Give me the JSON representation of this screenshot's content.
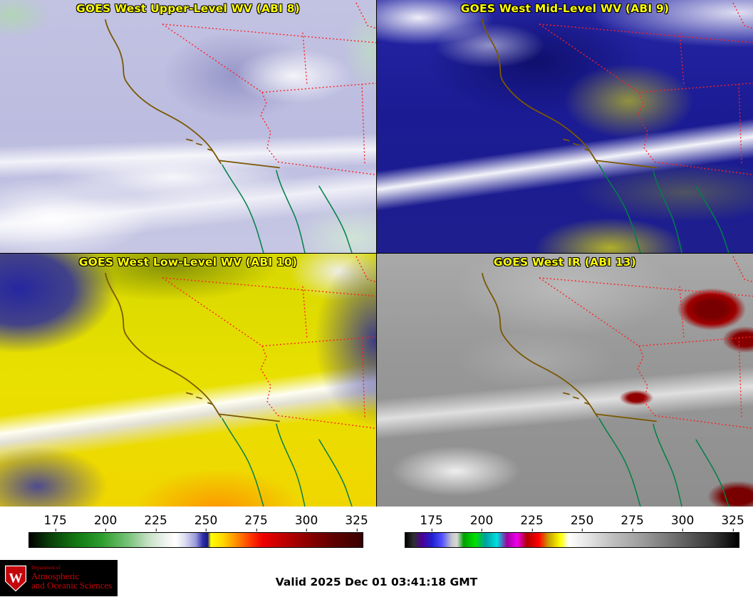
{
  "panels": [
    {
      "title": "GOES West Upper-Level WV (ABI 8)"
    },
    {
      "title": "GOES West Mid-Level WV (ABI 9)"
    },
    {
      "title": "GOES West Low-Level WV (ABI 10)"
    },
    {
      "title": "GOES West IR (ABI 13)"
    }
  ],
  "colorbars": {
    "left": {
      "ticks": [
        "175",
        "200",
        "225",
        "250",
        "275",
        "300",
        "325"
      ]
    },
    "right": {
      "ticks": [
        "175",
        "200",
        "225",
        "250",
        "275",
        "300",
        "325"
      ]
    }
  },
  "footer": {
    "valid_text": "Valid 2025 Dec 01 03:41:18 GMT",
    "logo": {
      "line1": "Department of",
      "line2": "Atmospheric",
      "line3": "and Oceanic Sciences",
      "crest_letter": "W"
    }
  },
  "colors": {
    "panel_title_text": "#ffff00",
    "state_border_dotted": "#ff0000",
    "coastline": "#7a5800",
    "mexico_coastline": "#008048",
    "logo_red": "#c5050c",
    "logo_background": "#000000",
    "wv_colorbar_stops": [
      "#000000",
      "#127812",
      "#2e9e2e",
      "#ffffff",
      "#9898d8",
      "#181880",
      "#ffff00",
      "#ff9000",
      "#f00000",
      "#900000",
      "#380000"
    ],
    "ir_colorbar_stops": [
      "#000000",
      "#4b0096",
      "#2020d0",
      "#d8d8d8",
      "#00e000",
      "#00e0e0",
      "#ee00ee",
      "#ff0000",
      "#ffff00",
      "#ffffff",
      "#c0c0c0",
      "#000000"
    ]
  }
}
